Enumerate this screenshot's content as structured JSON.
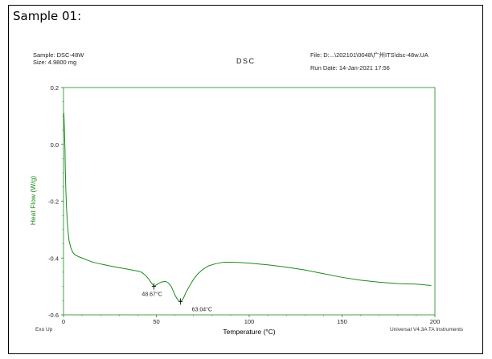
{
  "header": {
    "title": "Sample 01:"
  },
  "meta": {
    "sample_line": "Sample: DSC-48W",
    "size_line": "Size:  4.9800 mg",
    "file_line": "File: D:...\\202101\\0048\\广州ITS\\dsc-48w.UA",
    "run_date_line": "Run Date: 14-Jan-2021 17:56"
  },
  "footer": {
    "left": "Exo Up",
    "right": "Universal V4.3A TA Instruments"
  },
  "chart_data": {
    "type": "line",
    "title": "DSC",
    "xlabel": "Temperature (°C)",
    "ylabel": "Heat Flow (W/g)",
    "xlim": [
      0,
      200
    ],
    "ylim": [
      -0.6,
      0.2
    ],
    "x_ticks": [
      0,
      50,
      100,
      150,
      200
    ],
    "y_ticks": [
      0.2,
      0.0,
      -0.2,
      -0.4,
      -0.6
    ],
    "y_tick_labels": [
      "0.2",
      "0.0",
      "-0.2",
      "-0.4",
      "-0.6"
    ],
    "grid": false,
    "line_color": "#1a8a1a",
    "label_color": "#1a8a1a",
    "series": [
      {
        "x": [
          0.2,
          0.5,
          0.8,
          1.0,
          1.3,
          1.6,
          2.0,
          2.5,
          3,
          4,
          5,
          6,
          8,
          10,
          13,
          16,
          20,
          25,
          30,
          35,
          40,
          42,
          44,
          46,
          47,
          48,
          48.67,
          49.5,
          51,
          53,
          55,
          56.5,
          58,
          59,
          60,
          61,
          62,
          63.04,
          64,
          65,
          66,
          68,
          70,
          72,
          75,
          78,
          82,
          86,
          90,
          95,
          100,
          110,
          120,
          130,
          140,
          150,
          160,
          170,
          180,
          190,
          198
        ],
        "y": [
          0.11,
          0.05,
          -0.02,
          -0.1,
          -0.17,
          -0.22,
          -0.27,
          -0.31,
          -0.34,
          -0.365,
          -0.38,
          -0.388,
          -0.395,
          -0.4,
          -0.408,
          -0.415,
          -0.421,
          -0.428,
          -0.434,
          -0.44,
          -0.446,
          -0.45,
          -0.46,
          -0.475,
          -0.485,
          -0.493,
          -0.5,
          -0.497,
          -0.49,
          -0.484,
          -0.482,
          -0.488,
          -0.5,
          -0.515,
          -0.53,
          -0.542,
          -0.55,
          -0.553,
          -0.548,
          -0.535,
          -0.52,
          -0.497,
          -0.475,
          -0.458,
          -0.44,
          -0.428,
          -0.42,
          -0.415,
          -0.415,
          -0.416,
          -0.418,
          -0.424,
          -0.432,
          -0.442,
          -0.455,
          -0.468,
          -0.478,
          -0.485,
          -0.49,
          -0.492,
          -0.497
        ]
      }
    ],
    "annotations": [
      {
        "label": "48.67°C",
        "x": 48.67,
        "y": -0.5
      },
      {
        "label": "63.04°C",
        "x": 63.04,
        "y": -0.553
      }
    ]
  }
}
